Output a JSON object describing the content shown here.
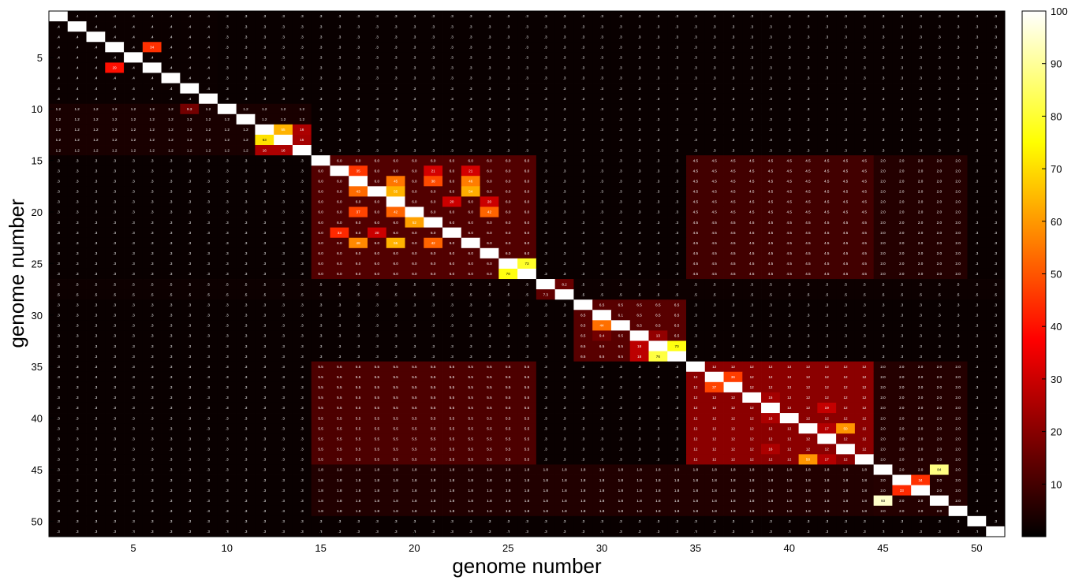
{
  "chart_data": {
    "type": "heatmap",
    "title": "",
    "xlabel": "genome number",
    "ylabel": "genome number",
    "n": 51,
    "x_ticks": [
      5,
      10,
      15,
      20,
      25,
      30,
      35,
      40,
      45,
      50
    ],
    "y_ticks": [
      5,
      10,
      15,
      20,
      25,
      30,
      35,
      40,
      45,
      50
    ],
    "colorbar": {
      "ticks": [
        10,
        20,
        30,
        40,
        50,
        60,
        70,
        80,
        90,
        100
      ],
      "range": [
        0,
        100
      ],
      "colormap": "hot",
      "colors": [
        "#000000",
        "#ff0000",
        "#ffff00",
        "#ffff80"
      ]
    },
    "diagonal_value": 100,
    "background_value": 0.3,
    "blocks": [
      {
        "rows": [
          1,
          9
        ],
        "cols": [
          1,
          9
        ],
        "value": 0.4
      },
      {
        "rows": [
          10,
          14
        ],
        "cols": [
          1,
          14
        ],
        "value": 1.2
      },
      {
        "rows": [
          15,
          26
        ],
        "cols": [
          15,
          26
        ],
        "value": 6.0
      },
      {
        "rows": [
          29,
          34
        ],
        "cols": [
          29,
          34
        ],
        "value": 6.5
      },
      {
        "rows": [
          35,
          44
        ],
        "cols": [
          35,
          44
        ],
        "value": 12.0
      },
      {
        "rows": [
          35,
          44
        ],
        "cols": [
          15,
          26
        ],
        "value": 5.5
      },
      {
        "rows": [
          15,
          26
        ],
        "cols": [
          35,
          44
        ],
        "value": 4.5
      },
      {
        "rows": [
          45,
          49
        ],
        "cols": [
          15,
          44
        ],
        "value": 1.8
      },
      {
        "rows": [
          15,
          26
        ],
        "cols": [
          45,
          49
        ],
        "value": 2.0
      },
      {
        "rows": [
          35,
          44
        ],
        "cols": [
          45,
          49
        ],
        "value": 2.0
      },
      {
        "rows": [
          45,
          49
        ],
        "cols": [
          45,
          49
        ],
        "value": 2.0
      },
      {
        "rows": [
          27,
          28
        ],
        "cols": [
          1,
          51
        ],
        "value": 0.5
      },
      {
        "rows": [
          29,
          34
        ],
        "cols": [
          35,
          51
        ],
        "value": 0.3
      }
    ],
    "cells": [
      {
        "row": 4,
        "col": 6,
        "value": 34
      },
      {
        "row": 6,
        "col": 4,
        "value": 29
      },
      {
        "row": 10,
        "col": 8,
        "value": 9.3
      },
      {
        "row": 12,
        "col": 13,
        "value": 55
      },
      {
        "row": 12,
        "col": 14,
        "value": 16
      },
      {
        "row": 13,
        "col": 12,
        "value": 63
      },
      {
        "row": 13,
        "col": 14,
        "value": 15
      },
      {
        "row": 14,
        "col": 12,
        "value": 16
      },
      {
        "row": 14,
        "col": 13,
        "value": 16
      },
      {
        "row": 16,
        "col": 17,
        "value": 35
      },
      {
        "row": 17,
        "col": 19,
        "value": 45
      },
      {
        "row": 17,
        "col": 21,
        "value": 38
      },
      {
        "row": 17,
        "col": 23,
        "value": 46
      },
      {
        "row": 18,
        "col": 17,
        "value": 43
      },
      {
        "row": 18,
        "col": 19,
        "value": 55
      },
      {
        "row": 18,
        "col": 23,
        "value": 54
      },
      {
        "row": 16,
        "col": 21,
        "value": 21
      },
      {
        "row": 16,
        "col": 23,
        "value": 21
      },
      {
        "row": 19,
        "col": 22,
        "value": 20
      },
      {
        "row": 19,
        "col": 24,
        "value": 20
      },
      {
        "row": 20,
        "col": 17,
        "value": 37
      },
      {
        "row": 20,
        "col": 19,
        "value": 42
      },
      {
        "row": 20,
        "col": 24,
        "value": 42
      },
      {
        "row": 21,
        "col": 20,
        "value": 52
      },
      {
        "row": 22,
        "col": 16,
        "value": 33
      },
      {
        "row": 22,
        "col": 18,
        "value": 20
      },
      {
        "row": 23,
        "col": 17,
        "value": 48
      },
      {
        "row": 23,
        "col": 19,
        "value": 55
      },
      {
        "row": 23,
        "col": 21,
        "value": 42
      },
      {
        "row": 25,
        "col": 26,
        "value": 73
      },
      {
        "row": 26,
        "col": 25,
        "value": 70
      },
      {
        "row": 28,
        "col": 27,
        "value": 7.3
      },
      {
        "row": 27,
        "col": 28,
        "value": 8.2
      },
      {
        "row": 31,
        "col": 30,
        "value": 44
      },
      {
        "row": 32,
        "col": 33,
        "value": 13
      },
      {
        "row": 33,
        "col": 32,
        "value": 18
      },
      {
        "row": 33,
        "col": 34,
        "value": 70
      },
      {
        "row": 34,
        "col": 33,
        "value": 76
      },
      {
        "row": 34,
        "col": 32,
        "value": 18
      },
      {
        "row": 32,
        "col": 30,
        "value": 9.4
      },
      {
        "row": 30,
        "col": 31,
        "value": 6.1
      },
      {
        "row": 37,
        "col": 36,
        "value": 37
      },
      {
        "row": 36,
        "col": 37,
        "value": 36
      },
      {
        "row": 38,
        "col": 39,
        "value": 15
      },
      {
        "row": 39,
        "col": 42,
        "value": 19
      },
      {
        "row": 41,
        "col": 42,
        "value": 17
      },
      {
        "row": 41,
        "col": 43,
        "value": 50
      },
      {
        "row": 42,
        "col": 40,
        "value": 12
      },
      {
        "row": 44,
        "col": 41,
        "value": 50
      },
      {
        "row": 44,
        "col": 42,
        "value": 17
      },
      {
        "row": 40,
        "col": 39,
        "value": 16
      },
      {
        "row": 43,
        "col": 39,
        "value": 16
      },
      {
        "row": 45,
        "col": 48,
        "value": 84
      },
      {
        "row": 48,
        "col": 45,
        "value": 93
      },
      {
        "row": 46,
        "col": 47,
        "value": 34
      },
      {
        "row": 47,
        "col": 46,
        "value": 33
      }
    ]
  }
}
